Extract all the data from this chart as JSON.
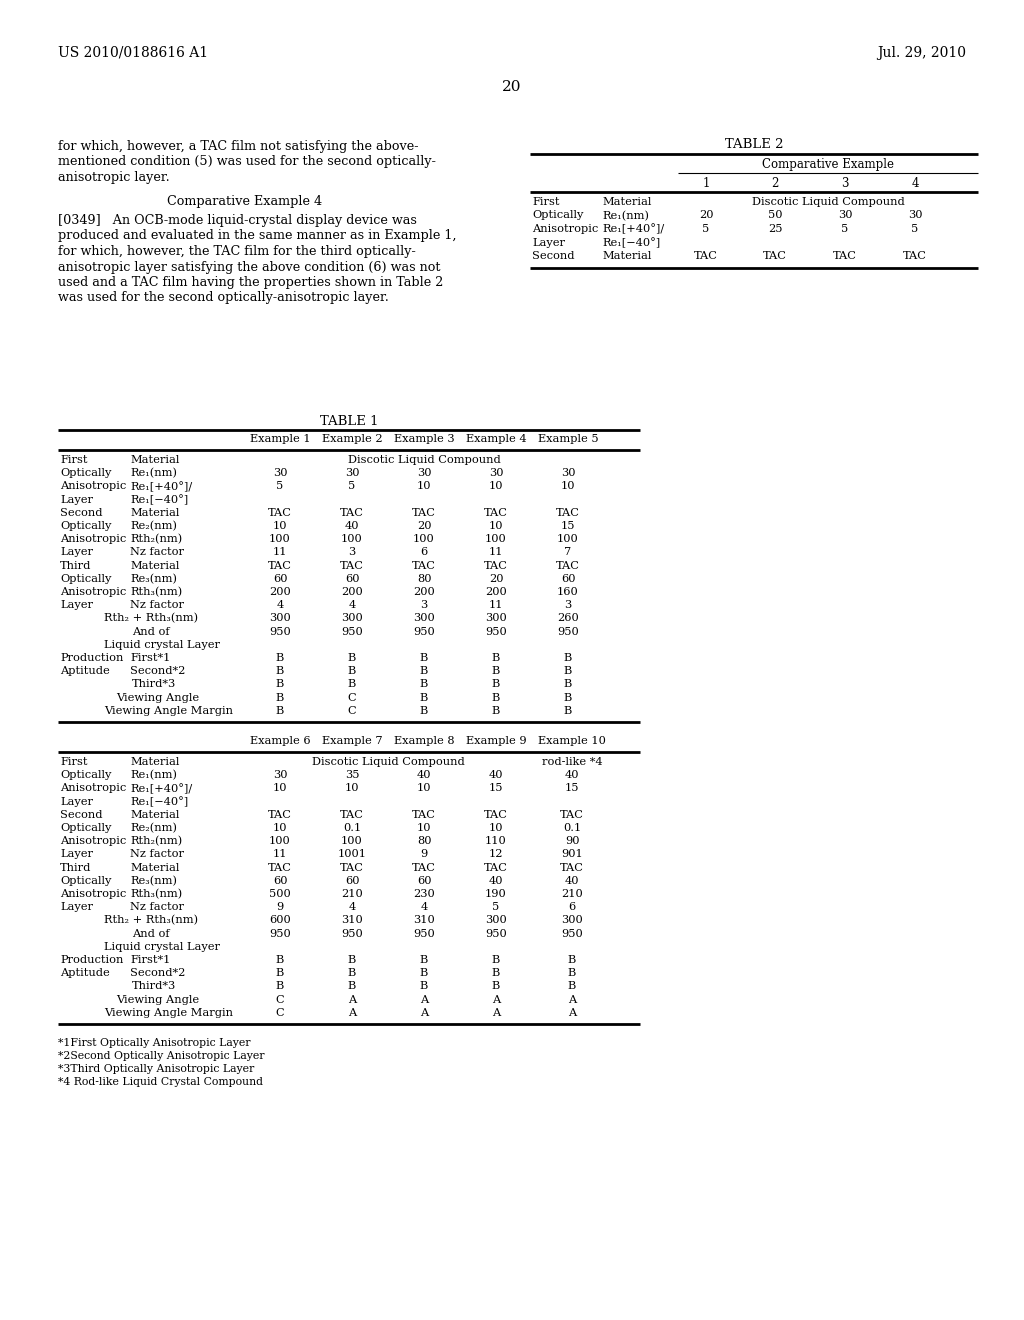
{
  "bg_color": "#ffffff",
  "header_left": "US 2010/0188616 A1",
  "header_right": "Jul. 29, 2010",
  "page_number": "20",
  "footnotes": [
    "*1First Optically Anisotropic Layer",
    "*2Second Optically Anisotropic Layer",
    "*3Third Optically Anisotropic Layer",
    "*4 Rod-like Liquid Crystal Compound"
  ]
}
